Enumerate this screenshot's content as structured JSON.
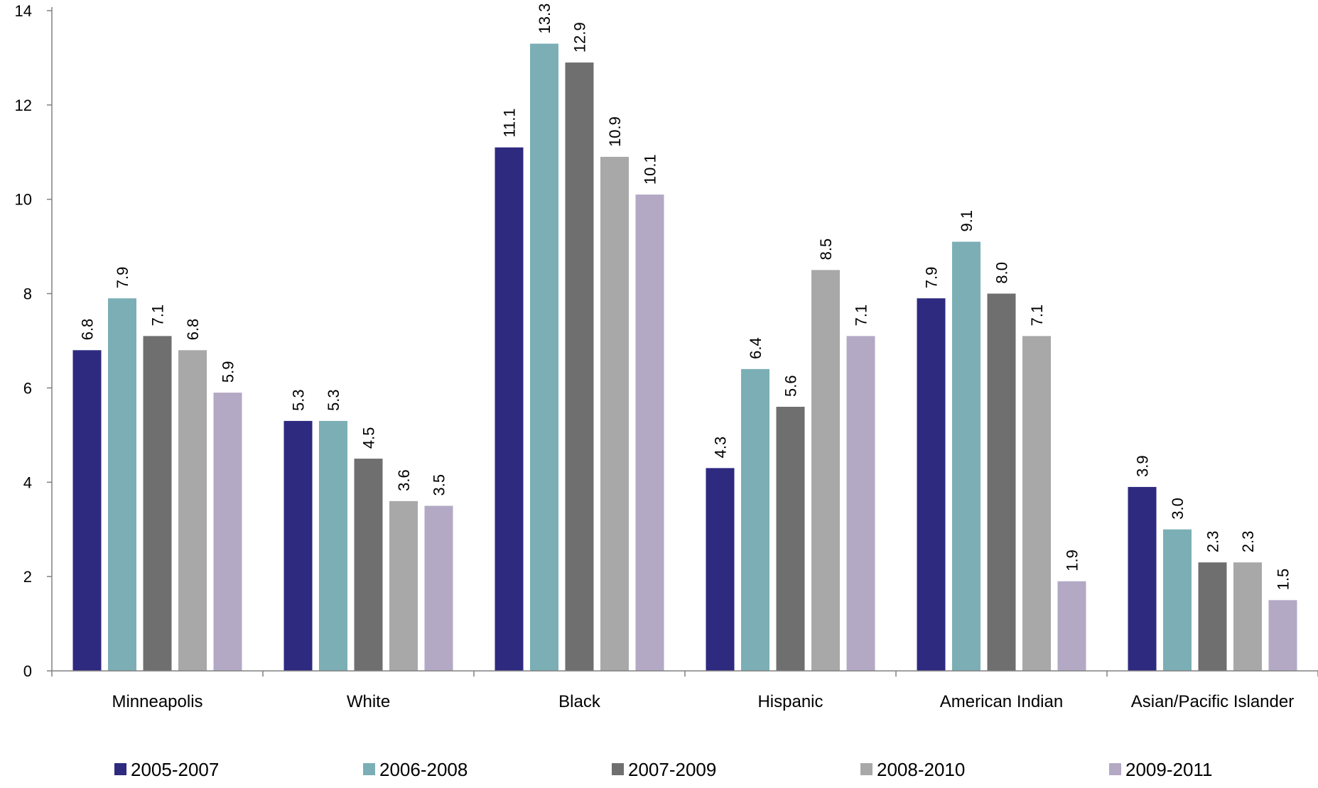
{
  "chart_data": {
    "type": "bar",
    "title": "",
    "xlabel": "",
    "ylabel": "",
    "ylim": [
      0,
      14
    ],
    "yticks": [
      0,
      2,
      4,
      6,
      8,
      10,
      12,
      14
    ],
    "grid": false,
    "legend_position": "bottom",
    "categories": [
      "Minneapolis",
      "White",
      "Black",
      "Hispanic",
      "American Indian",
      "Asian/Pacific Islander"
    ],
    "series": [
      {
        "name": "2005-2007",
        "color": "#2e2a80",
        "values": [
          6.8,
          5.3,
          11.1,
          4.3,
          7.9,
          3.9
        ],
        "labels": [
          "6.8",
          "5.3",
          "11.1",
          "4.3",
          "7.9",
          "3.9"
        ]
      },
      {
        "name": "2006-2008",
        "color": "#7bafb5",
        "values": [
          7.9,
          5.3,
          13.3,
          6.4,
          9.1,
          3.0
        ],
        "labels": [
          "7.9",
          "5.3",
          "13.3",
          "6.4",
          "9.1",
          "3.0"
        ]
      },
      {
        "name": "2007-2009",
        "color": "#6f6f6f",
        "values": [
          7.1,
          4.5,
          12.9,
          5.6,
          8.0,
          2.3
        ],
        "labels": [
          "7.1",
          "4.5",
          "12.9",
          "5.6",
          "8.0",
          "2.3"
        ]
      },
      {
        "name": "2008-2010",
        "color": "#a8a8a8",
        "values": [
          6.8,
          3.6,
          10.9,
          8.5,
          7.1,
          2.3
        ],
        "labels": [
          "6.8",
          "3.6",
          "10.9",
          "8.5",
          "7.1",
          "2.3"
        ]
      },
      {
        "name": "2009-2011",
        "color": "#b3a9c5",
        "values": [
          5.9,
          3.5,
          10.1,
          7.1,
          1.9,
          1.5
        ],
        "labels": [
          "5.9",
          "3.5",
          "10.1",
          "7.1",
          "1.9",
          "1.5"
        ]
      }
    ]
  }
}
